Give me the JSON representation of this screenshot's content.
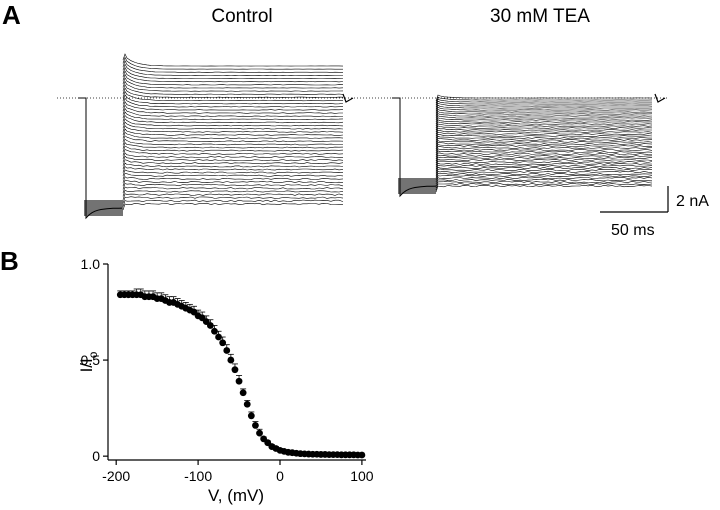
{
  "panel_a": {
    "letter": "A",
    "control_title": "Control",
    "tea_title": "30 mM TEA",
    "scale_current": "2 nA",
    "scale_time": "50 ms"
  },
  "panel_b": {
    "letter": "B"
  },
  "chart_data": [
    {
      "type": "line",
      "panel": "A",
      "description_series": [
        "Control",
        "30 mM TEA"
      ],
      "series": [
        {
          "name": "Control",
          "sweep_count": 45,
          "peak_current_nA": 5.8,
          "steady_current_nA": 5.0
        },
        {
          "name": "30 mM TEA",
          "sweep_count": 45,
          "peak_current_nA": 0.1,
          "steady_current_nA": 0.0
        }
      ],
      "scale_bars": {
        "current_nA": 2,
        "time_ms": 50
      }
    },
    {
      "type": "scatter",
      "panel": "B",
      "xlabel": "V, (mV)",
      "ylabel": "I/I",
      "ylabel_subscript": "o",
      "xlim": [
        -210,
        105
      ],
      "ylim": [
        -0.02,
        1.0
      ],
      "xticks": [
        -200,
        -100,
        0,
        100
      ],
      "yticks": [
        0,
        0.5,
        1.0
      ],
      "ytick_labels": [
        "0",
        "0.5",
        "1.0"
      ],
      "x": [
        -195,
        -190,
        -185,
        -180,
        -175,
        -170,
        -165,
        -160,
        -155,
        -150,
        -145,
        -140,
        -135,
        -130,
        -125,
        -120,
        -115,
        -110,
        -105,
        -100,
        -95,
        -90,
        -85,
        -80,
        -75,
        -70,
        -65,
        -60,
        -55,
        -50,
        -45,
        -40,
        -35,
        -30,
        -25,
        -20,
        -15,
        -10,
        -5,
        0,
        5,
        10,
        15,
        20,
        25,
        30,
        35,
        40,
        45,
        50,
        55,
        60,
        65,
        70,
        75,
        80,
        85,
        90,
        95,
        100
      ],
      "y": [
        0.84,
        0.84,
        0.84,
        0.84,
        0.84,
        0.84,
        0.83,
        0.83,
        0.83,
        0.82,
        0.82,
        0.81,
        0.8,
        0.8,
        0.79,
        0.78,
        0.77,
        0.76,
        0.75,
        0.73,
        0.72,
        0.7,
        0.68,
        0.65,
        0.62,
        0.59,
        0.55,
        0.5,
        0.45,
        0.39,
        0.33,
        0.27,
        0.21,
        0.16,
        0.12,
        0.09,
        0.07,
        0.05,
        0.04,
        0.03,
        0.025,
        0.02,
        0.018,
        0.015,
        0.013,
        0.012,
        0.011,
        0.01,
        0.01,
        0.009,
        0.009,
        0.008,
        0.008,
        0.008,
        0.007,
        0.007,
        0.007,
        0.007,
        0.006,
        0.006
      ],
      "err": [
        0.02,
        0.02,
        0.02,
        0.02,
        0.03,
        0.03,
        0.03,
        0.03,
        0.03,
        0.03,
        0.03,
        0.03,
        0.03,
        0.03,
        0.03,
        0.03,
        0.03,
        0.03,
        0.03,
        0.03,
        0.03,
        0.03,
        0.03,
        0.03,
        0.03,
        0.03,
        0.03,
        0.03,
        0.03,
        0.03,
        0.02,
        0.02,
        0.02,
        0.02,
        0.02,
        0.01,
        0.01,
        0.01,
        0.01,
        0.01,
        0.005,
        0.005,
        0.005,
        0.005,
        0.005,
        0.005,
        0.005,
        0.005,
        0.005,
        0.005,
        0.005,
        0.005,
        0.005,
        0.005,
        0.005,
        0.005,
        0.005,
        0.005,
        0.005,
        0.005
      ]
    }
  ]
}
